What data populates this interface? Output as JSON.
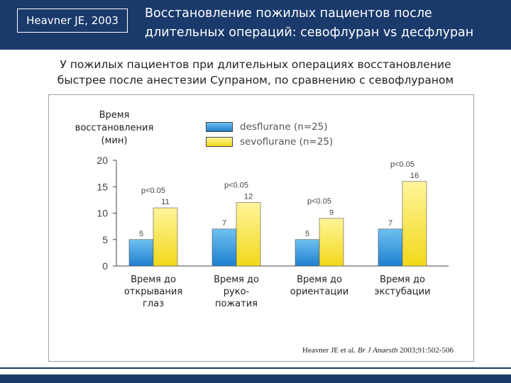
{
  "header": {
    "citation": "Heavner JE, 2003",
    "title_line1": "Восстановление пожилых пациентов после",
    "title_line2": "длительных операций: севофлуран vs десфлуран"
  },
  "subtitle": {
    "line1": "У пожилых пациентов при длительных операциях восстановление",
    "line2": "быстрее после анестезии Супраном, по сравнению с севофлураном"
  },
  "chart_data": {
    "type": "bar",
    "ylabel_lines": [
      "Время",
      "восстановления",
      "(мин)"
    ],
    "ylim": [
      0,
      20
    ],
    "yticks": [
      0,
      5,
      10,
      15,
      20
    ],
    "categories": [
      [
        "Время до",
        "открывания",
        "глаз"
      ],
      [
        "Время до",
        "руко-",
        "пожатия"
      ],
      [
        "Время до",
        "ориентации"
      ],
      [
        "Время до",
        "экстубации"
      ]
    ],
    "series": [
      {
        "name": "desflurane (n=25)",
        "values": [
          5,
          7,
          5,
          7
        ],
        "color": "#2b8fd6"
      },
      {
        "name": "sevoflurane (n=25)",
        "values": [
          11,
          12,
          9,
          16
        ],
        "color": "#f7e12a"
      }
    ],
    "annotations": [
      "p<0.05",
      "p<0.05",
      "p<0.05",
      "p<0.05"
    ],
    "legend_position": "top"
  },
  "reference": {
    "authors": "Heavner JE et al.",
    "journal": "Br J Anaesth",
    "details": "2003;91:502-506"
  }
}
